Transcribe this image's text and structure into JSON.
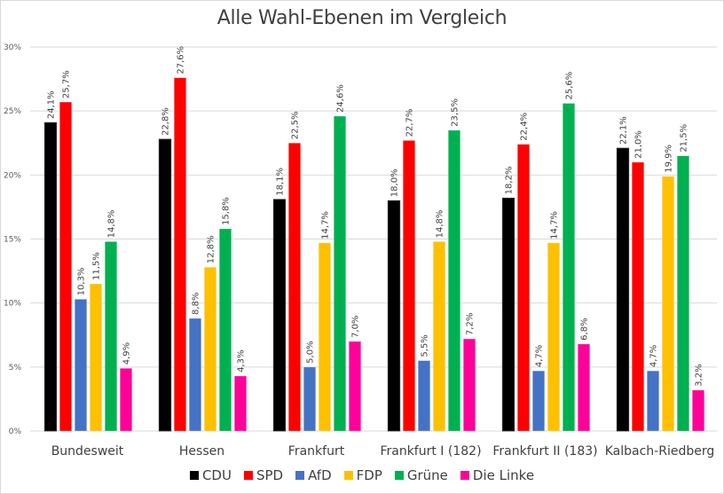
{
  "chart_data": {
    "type": "bar",
    "title": "Alle Wahl-Ebenen im Vergleich",
    "xlabel": "",
    "ylabel": "",
    "ylim": [
      0,
      30
    ],
    "yticks": [
      0,
      5,
      10,
      15,
      20,
      25,
      30
    ],
    "ytick_labels": [
      "0%",
      "5%",
      "10%",
      "15%",
      "20%",
      "25%",
      "30%"
    ],
    "grid": true,
    "legend_position": "bottom",
    "categories": [
      "Bundesweit",
      "Hessen",
      "Frankfurt",
      "Frankfurt I (182)",
      "Frankfurt II (183)",
      "Kalbach-Riedberg"
    ],
    "series": [
      {
        "name": "CDU",
        "color": "#000000",
        "values": [
          24.1,
          22.8,
          18.1,
          18.0,
          18.2,
          22.1
        ],
        "labels": [
          "24,1%",
          "22,8%",
          "18,1%",
          "18,0%",
          "18,2%",
          "22,1%"
        ]
      },
      {
        "name": "SPD",
        "color": "#ff0000",
        "values": [
          25.7,
          27.6,
          22.5,
          22.7,
          22.4,
          21.0
        ],
        "labels": [
          "25,7%",
          "27,6%",
          "22,5%",
          "22,7%",
          "22,4%",
          "21,0%"
        ]
      },
      {
        "name": "AfD",
        "color": "#4472c4",
        "values": [
          10.3,
          8.8,
          5.0,
          5.5,
          4.7,
          4.7
        ],
        "labels": [
          "10,3%",
          "8,8%",
          "5,0%",
          "5,5%",
          "4,7%",
          "4,7%"
        ]
      },
      {
        "name": "FDP",
        "color": "#ffc000",
        "values": [
          11.5,
          12.8,
          14.7,
          14.8,
          14.7,
          19.9
        ],
        "labels": [
          "11,5%",
          "12,8%",
          "14,7%",
          "14,8%",
          "14,7%",
          "19,9%"
        ]
      },
      {
        "name": "Grüne",
        "color": "#00b050",
        "values": [
          14.8,
          15.8,
          24.6,
          23.5,
          25.6,
          21.5
        ],
        "labels": [
          "14,8%",
          "15,8%",
          "24,6%",
          "23,5%",
          "25,6%",
          "21,5%"
        ]
      },
      {
        "name": "Die Linke",
        "color": "#ff0099",
        "values": [
          4.9,
          4.3,
          7.0,
          7.2,
          6.8,
          3.2
        ],
        "labels": [
          "4,9%",
          "4,3%",
          "7,0%",
          "7,2%",
          "6,8%",
          "3,2%"
        ]
      }
    ]
  }
}
